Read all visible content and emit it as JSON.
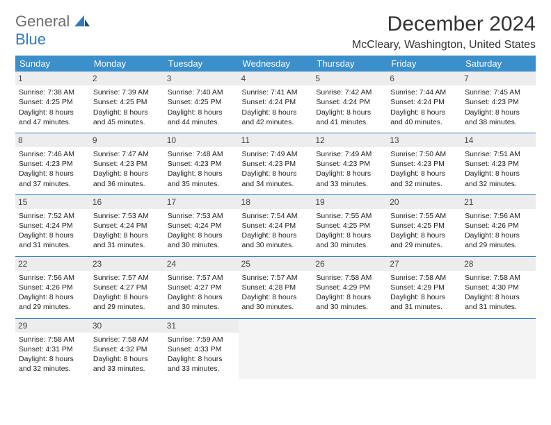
{
  "colors": {
    "header_bg": "#3b8fca",
    "header_text": "#ffffff",
    "daynum_bg": "#ededed",
    "row_border": "#2f7bbf",
    "logo_gray": "#6d6d6d",
    "logo_blue": "#2f7bbf",
    "empty_bg": "#f4f4f4"
  },
  "typography": {
    "title_fontsize": 30,
    "location_fontsize": 16,
    "dayheader_fontsize": 13,
    "cell_fontsize": 10.5
  },
  "logo": {
    "part1": "General",
    "part2": "Blue"
  },
  "title": "December 2024",
  "location": "McCleary, Washington, United States",
  "day_headers": [
    "Sunday",
    "Monday",
    "Tuesday",
    "Wednesday",
    "Thursday",
    "Friday",
    "Saturday"
  ],
  "weeks": [
    [
      {
        "num": "1",
        "sunrise": "Sunrise: 7:38 AM",
        "sunset": "Sunset: 4:25 PM",
        "daylight": "Daylight: 8 hours and 47 minutes."
      },
      {
        "num": "2",
        "sunrise": "Sunrise: 7:39 AM",
        "sunset": "Sunset: 4:25 PM",
        "daylight": "Daylight: 8 hours and 45 minutes."
      },
      {
        "num": "3",
        "sunrise": "Sunrise: 7:40 AM",
        "sunset": "Sunset: 4:25 PM",
        "daylight": "Daylight: 8 hours and 44 minutes."
      },
      {
        "num": "4",
        "sunrise": "Sunrise: 7:41 AM",
        "sunset": "Sunset: 4:24 PM",
        "daylight": "Daylight: 8 hours and 42 minutes."
      },
      {
        "num": "5",
        "sunrise": "Sunrise: 7:42 AM",
        "sunset": "Sunset: 4:24 PM",
        "daylight": "Daylight: 8 hours and 41 minutes."
      },
      {
        "num": "6",
        "sunrise": "Sunrise: 7:44 AM",
        "sunset": "Sunset: 4:24 PM",
        "daylight": "Daylight: 8 hours and 40 minutes."
      },
      {
        "num": "7",
        "sunrise": "Sunrise: 7:45 AM",
        "sunset": "Sunset: 4:23 PM",
        "daylight": "Daylight: 8 hours and 38 minutes."
      }
    ],
    [
      {
        "num": "8",
        "sunrise": "Sunrise: 7:46 AM",
        "sunset": "Sunset: 4:23 PM",
        "daylight": "Daylight: 8 hours and 37 minutes."
      },
      {
        "num": "9",
        "sunrise": "Sunrise: 7:47 AM",
        "sunset": "Sunset: 4:23 PM",
        "daylight": "Daylight: 8 hours and 36 minutes."
      },
      {
        "num": "10",
        "sunrise": "Sunrise: 7:48 AM",
        "sunset": "Sunset: 4:23 PM",
        "daylight": "Daylight: 8 hours and 35 minutes."
      },
      {
        "num": "11",
        "sunrise": "Sunrise: 7:49 AM",
        "sunset": "Sunset: 4:23 PM",
        "daylight": "Daylight: 8 hours and 34 minutes."
      },
      {
        "num": "12",
        "sunrise": "Sunrise: 7:49 AM",
        "sunset": "Sunset: 4:23 PM",
        "daylight": "Daylight: 8 hours and 33 minutes."
      },
      {
        "num": "13",
        "sunrise": "Sunrise: 7:50 AM",
        "sunset": "Sunset: 4:23 PM",
        "daylight": "Daylight: 8 hours and 32 minutes."
      },
      {
        "num": "14",
        "sunrise": "Sunrise: 7:51 AM",
        "sunset": "Sunset: 4:23 PM",
        "daylight": "Daylight: 8 hours and 32 minutes."
      }
    ],
    [
      {
        "num": "15",
        "sunrise": "Sunrise: 7:52 AM",
        "sunset": "Sunset: 4:24 PM",
        "daylight": "Daylight: 8 hours and 31 minutes."
      },
      {
        "num": "16",
        "sunrise": "Sunrise: 7:53 AM",
        "sunset": "Sunset: 4:24 PM",
        "daylight": "Daylight: 8 hours and 31 minutes."
      },
      {
        "num": "17",
        "sunrise": "Sunrise: 7:53 AM",
        "sunset": "Sunset: 4:24 PM",
        "daylight": "Daylight: 8 hours and 30 minutes."
      },
      {
        "num": "18",
        "sunrise": "Sunrise: 7:54 AM",
        "sunset": "Sunset: 4:24 PM",
        "daylight": "Daylight: 8 hours and 30 minutes."
      },
      {
        "num": "19",
        "sunrise": "Sunrise: 7:55 AM",
        "sunset": "Sunset: 4:25 PM",
        "daylight": "Daylight: 8 hours and 30 minutes."
      },
      {
        "num": "20",
        "sunrise": "Sunrise: 7:55 AM",
        "sunset": "Sunset: 4:25 PM",
        "daylight": "Daylight: 8 hours and 29 minutes."
      },
      {
        "num": "21",
        "sunrise": "Sunrise: 7:56 AM",
        "sunset": "Sunset: 4:26 PM",
        "daylight": "Daylight: 8 hours and 29 minutes."
      }
    ],
    [
      {
        "num": "22",
        "sunrise": "Sunrise: 7:56 AM",
        "sunset": "Sunset: 4:26 PM",
        "daylight": "Daylight: 8 hours and 29 minutes."
      },
      {
        "num": "23",
        "sunrise": "Sunrise: 7:57 AM",
        "sunset": "Sunset: 4:27 PM",
        "daylight": "Daylight: 8 hours and 29 minutes."
      },
      {
        "num": "24",
        "sunrise": "Sunrise: 7:57 AM",
        "sunset": "Sunset: 4:27 PM",
        "daylight": "Daylight: 8 hours and 30 minutes."
      },
      {
        "num": "25",
        "sunrise": "Sunrise: 7:57 AM",
        "sunset": "Sunset: 4:28 PM",
        "daylight": "Daylight: 8 hours and 30 minutes."
      },
      {
        "num": "26",
        "sunrise": "Sunrise: 7:58 AM",
        "sunset": "Sunset: 4:29 PM",
        "daylight": "Daylight: 8 hours and 30 minutes."
      },
      {
        "num": "27",
        "sunrise": "Sunrise: 7:58 AM",
        "sunset": "Sunset: 4:29 PM",
        "daylight": "Daylight: 8 hours and 31 minutes."
      },
      {
        "num": "28",
        "sunrise": "Sunrise: 7:58 AM",
        "sunset": "Sunset: 4:30 PM",
        "daylight": "Daylight: 8 hours and 31 minutes."
      }
    ],
    [
      {
        "num": "29",
        "sunrise": "Sunrise: 7:58 AM",
        "sunset": "Sunset: 4:31 PM",
        "daylight": "Daylight: 8 hours and 32 minutes."
      },
      {
        "num": "30",
        "sunrise": "Sunrise: 7:58 AM",
        "sunset": "Sunset: 4:32 PM",
        "daylight": "Daylight: 8 hours and 33 minutes."
      },
      {
        "num": "31",
        "sunrise": "Sunrise: 7:59 AM",
        "sunset": "Sunset: 4:33 PM",
        "daylight": "Daylight: 8 hours and 33 minutes."
      },
      null,
      null,
      null,
      null
    ]
  ]
}
